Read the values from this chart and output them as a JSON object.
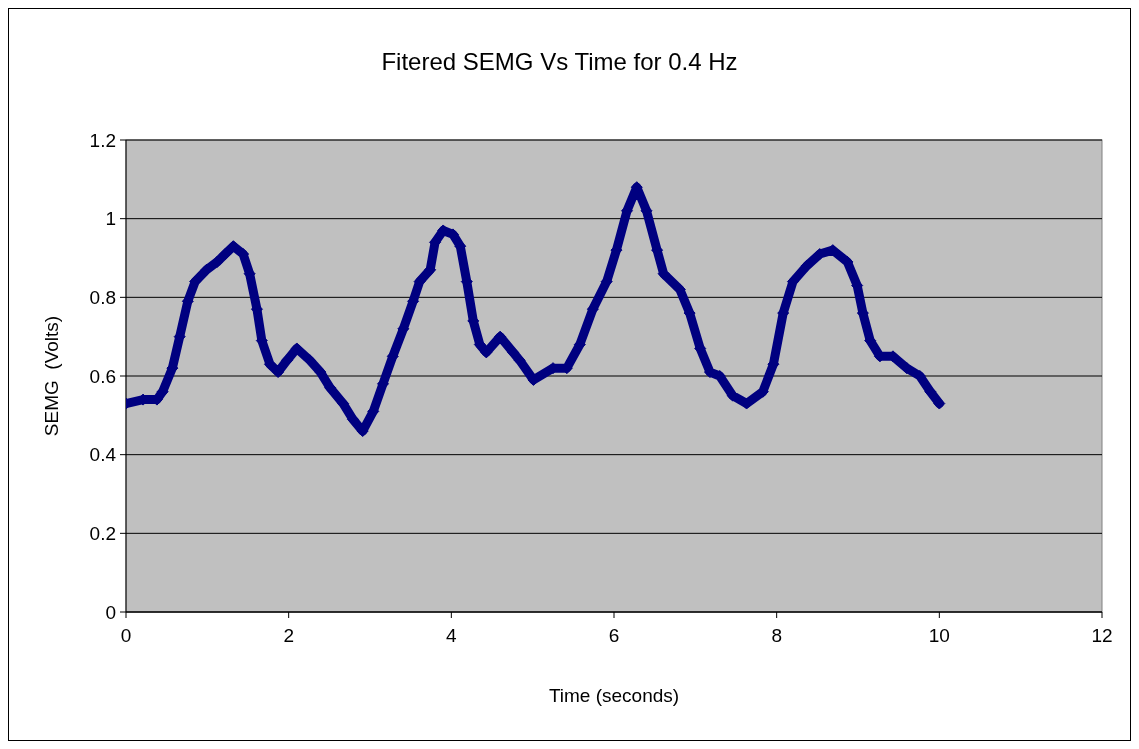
{
  "chart_data": {
    "type": "line",
    "title": "Fitered SEMG Vs Time for 0.4 Hz",
    "xlabel": "Time (seconds)",
    "ylabel": "SEMG  (Volts)",
    "xlim": [
      0,
      12
    ],
    "xticks": [
      0,
      2,
      4,
      6,
      8,
      10,
      12
    ],
    "ylim": [
      0,
      1.2
    ],
    "yticks": [
      0,
      0.2,
      0.4,
      0.6,
      0.8,
      1,
      1.2
    ],
    "grid": "y",
    "marker": "diamond",
    "line_style": "solid",
    "series": [
      {
        "color": "#000080",
        "x": [
          0,
          0.21,
          0.38,
          0.45,
          0.57,
          0.66,
          0.76,
          0.85,
          0.99,
          1.12,
          1.22,
          1.32,
          1.44,
          1.52,
          1.61,
          1.67,
          1.77,
          1.87,
          1.98,
          2.1,
          2.26,
          2.39,
          2.51,
          2.67,
          2.79,
          2.91,
          3.04,
          3.16,
          3.28,
          3.41,
          3.53,
          3.61,
          3.74,
          3.8,
          3.9,
          4.02,
          4.11,
          4.19,
          4.27,
          4.35,
          4.43,
          4.6,
          4.76,
          4.84,
          5.01,
          5.25,
          5.42,
          5.58,
          5.74,
          5.91,
          6.03,
          6.16,
          6.28,
          6.4,
          6.53,
          6.61,
          6.81,
          6.93,
          7.06,
          7.18,
          7.3,
          7.46,
          7.63,
          7.83,
          7.96,
          8.08,
          8.2,
          8.37,
          8.53,
          8.69,
          8.87,
          8.99,
          9.06,
          9.15,
          9.27,
          9.43,
          9.6,
          9.76,
          9.89,
          10
        ],
        "values": [
          0.53,
          0.54,
          0.54,
          0.56,
          0.62,
          0.7,
          0.79,
          0.84,
          0.87,
          0.89,
          0.91,
          0.93,
          0.91,
          0.86,
          0.77,
          0.69,
          0.63,
          0.61,
          0.64,
          0.67,
          0.64,
          0.61,
          0.57,
          0.53,
          0.49,
          0.46,
          0.51,
          0.58,
          0.65,
          0.72,
          0.79,
          0.84,
          0.87,
          0.94,
          0.97,
          0.96,
          0.93,
          0.84,
          0.74,
          0.68,
          0.66,
          0.7,
          0.66,
          0.64,
          0.59,
          0.62,
          0.62,
          0.68,
          0.77,
          0.84,
          0.92,
          1.02,
          1.08,
          1.02,
          0.92,
          0.86,
          0.82,
          0.76,
          0.67,
          0.61,
          0.6,
          0.55,
          0.53,
          0.56,
          0.63,
          0.76,
          0.84,
          0.88,
          0.91,
          0.92,
          0.89,
          0.83,
          0.76,
          0.69,
          0.65,
          0.65,
          0.62,
          0.6,
          0.56,
          0.53
        ]
      }
    ]
  }
}
